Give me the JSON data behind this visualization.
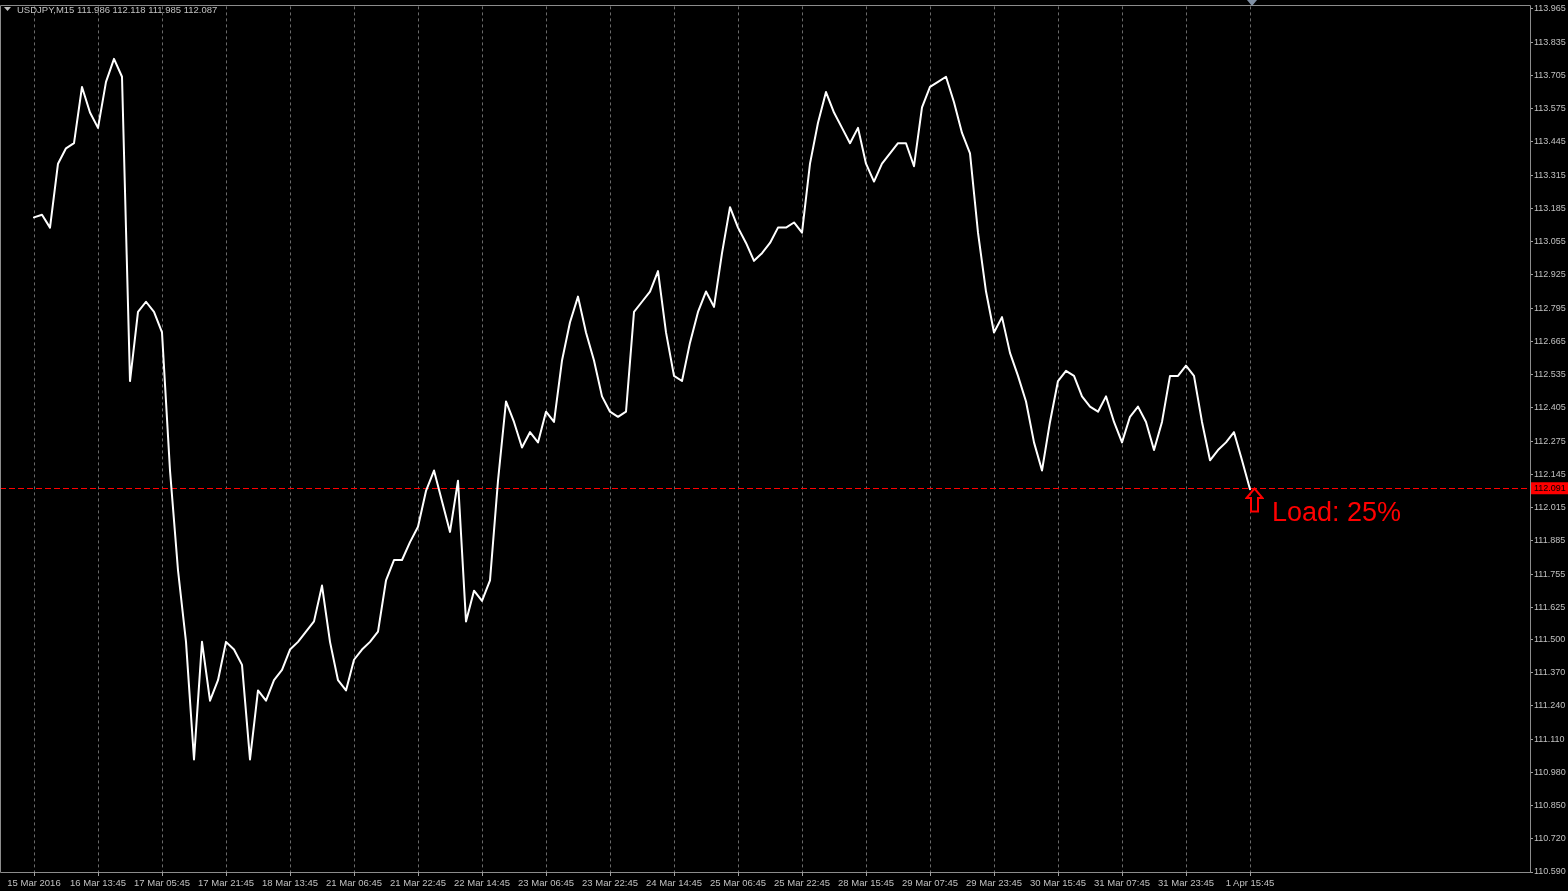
{
  "chart_data": {
    "type": "line",
    "title": "USDJPY,M15 111.986 112.118 111.985 112.087",
    "categories": [
      "15 Mar 2016",
      null,
      null,
      null,
      null,
      null,
      null,
      null,
      "16 Mar 13:45",
      null,
      null,
      null,
      null,
      null,
      null,
      null,
      "17 Mar 05:45",
      null,
      null,
      null,
      null,
      null,
      null,
      null,
      "17 Mar 21:45",
      null,
      null,
      null,
      null,
      null,
      null,
      null,
      "18 Mar 13:45",
      null,
      null,
      null,
      null,
      null,
      null,
      null,
      "21 Mar 06:45",
      null,
      null,
      null,
      null,
      null,
      null,
      null,
      "21 Mar 22:45",
      null,
      null,
      null,
      null,
      null,
      null,
      null,
      "22 Mar 14:45",
      null,
      null,
      null,
      null,
      null,
      null,
      null,
      "23 Mar 06:45",
      null,
      null,
      null,
      null,
      null,
      null,
      null,
      "23 Mar 22:45",
      null,
      null,
      null,
      null,
      null,
      null,
      null,
      "24 Mar 14:45",
      null,
      null,
      null,
      null,
      null,
      null,
      null,
      "25 Mar 06:45",
      null,
      null,
      null,
      null,
      null,
      null,
      null,
      "25 Mar 22:45",
      null,
      null,
      null,
      null,
      null,
      null,
      null,
      "28 Mar 15:45",
      null,
      null,
      null,
      null,
      null,
      null,
      null,
      "29 Mar 07:45",
      null,
      null,
      null,
      null,
      null,
      null,
      null,
      "29 Mar 23:45",
      null,
      null,
      null,
      null,
      null,
      null,
      null,
      "30 Mar 15:45",
      null,
      null,
      null,
      null,
      null,
      null,
      null,
      "31 Mar 07:45",
      null,
      null,
      null,
      null,
      null,
      null,
      null,
      "31 Mar 23:45",
      null,
      null,
      null,
      null,
      null,
      null,
      null,
      "1 Apr 15:45",
      null,
      null,
      null,
      null,
      null,
      null,
      null,
      null,
      null,
      null,
      null,
      null,
      null,
      null,
      null,
      null,
      null,
      null,
      null,
      null,
      null,
      null,
      null,
      null,
      null,
      null,
      null,
      null,
      null,
      null,
      null,
      null,
      null,
      null,
      null
    ],
    "series": [
      {
        "color": "#ffffff",
        "values": [
          113.15,
          113.16,
          113.11,
          113.36,
          113.42,
          113.44,
          113.66,
          113.56,
          113.5,
          113.68,
          113.77,
          113.7,
          112.51,
          112.78,
          112.82,
          112.78,
          112.7,
          112.16,
          111.77,
          111.49,
          111.03,
          111.49,
          111.26,
          111.34,
          111.49,
          111.46,
          111.4,
          111.03,
          111.3,
          111.26,
          111.34,
          111.38,
          111.46,
          111.49,
          111.53,
          111.57,
          111.71,
          111.49,
          111.34,
          111.3,
          111.42,
          111.46,
          111.49,
          111.53,
          111.73,
          111.81,
          111.81,
          111.88,
          111.94,
          112.08,
          112.16,
          112.04,
          111.92,
          112.12,
          111.57,
          111.69,
          111.65,
          111.73,
          112.12,
          112.43,
          112.35,
          112.25,
          112.31,
          112.27,
          112.39,
          112.35,
          112.59,
          112.74,
          112.84,
          112.7,
          112.59,
          112.45,
          112.39,
          112.37,
          112.39,
          112.78,
          112.82,
          112.86,
          112.94,
          112.7,
          112.53,
          112.51,
          112.66,
          112.78,
          112.86,
          112.8,
          113.01,
          113.19,
          113.11,
          113.05,
          112.98,
          113.01,
          113.05,
          113.11,
          113.11,
          113.13,
          113.09,
          113.36,
          113.52,
          113.64,
          113.56,
          113.5,
          113.44,
          113.5,
          113.36,
          113.29,
          113.36,
          113.4,
          113.44,
          113.44,
          113.35,
          113.58,
          113.66,
          113.68,
          113.7,
          113.6,
          113.48,
          113.4,
          113.09,
          112.86,
          112.7,
          112.76,
          112.62,
          112.53,
          112.43,
          112.27,
          112.16,
          112.35,
          112.51,
          112.55,
          112.53,
          112.45,
          112.41,
          112.39,
          112.45,
          112.35,
          112.27,
          112.37,
          112.41,
          112.35,
          112.24,
          112.35,
          112.53,
          112.53,
          112.57,
          112.53,
          112.35,
          112.2,
          112.24,
          112.27,
          112.31,
          112.2,
          112.087,
          null,
          null,
          null,
          null,
          null,
          null,
          null,
          null,
          null,
          null,
          null,
          null,
          null,
          null,
          null,
          null,
          null,
          null,
          null,
          null,
          null,
          null,
          null,
          null,
          null,
          null,
          null,
          null,
          null,
          null,
          null,
          null,
          null,
          null,
          null
        ]
      }
    ],
    "ylim": [
      110.59,
      113.975
    ],
    "yticks": [
      {
        "value": 110.59,
        "label": "110.590"
      },
      {
        "value": 110.72,
        "label": "110.720"
      },
      {
        "value": 110.85,
        "label": "110.850"
      },
      {
        "value": 110.98,
        "label": "110.980"
      },
      {
        "value": 111.11,
        "label": "111.110"
      },
      {
        "value": 111.24,
        "label": "111.240"
      },
      {
        "value": 111.37,
        "label": "111.370"
      },
      {
        "value": 111.5,
        "label": "111.500"
      },
      111.625,
      111.755,
      111.885,
      112.015,
      112.145,
      112.275,
      112.405,
      112.535,
      112.665,
      112.795,
      112.925,
      113.055,
      113.185,
      113.315,
      113.445,
      113.575,
      113.705,
      113.835,
      113.965
    ],
    "grid": "x",
    "marker": "none",
    "ref_lines": [
      {
        "axis": "y",
        "value": 112.091,
        "label": "112.091",
        "color": "#ff0000",
        "line_style": "dashed"
      }
    ],
    "annotations": [
      "Load: 25%"
    ]
  }
}
